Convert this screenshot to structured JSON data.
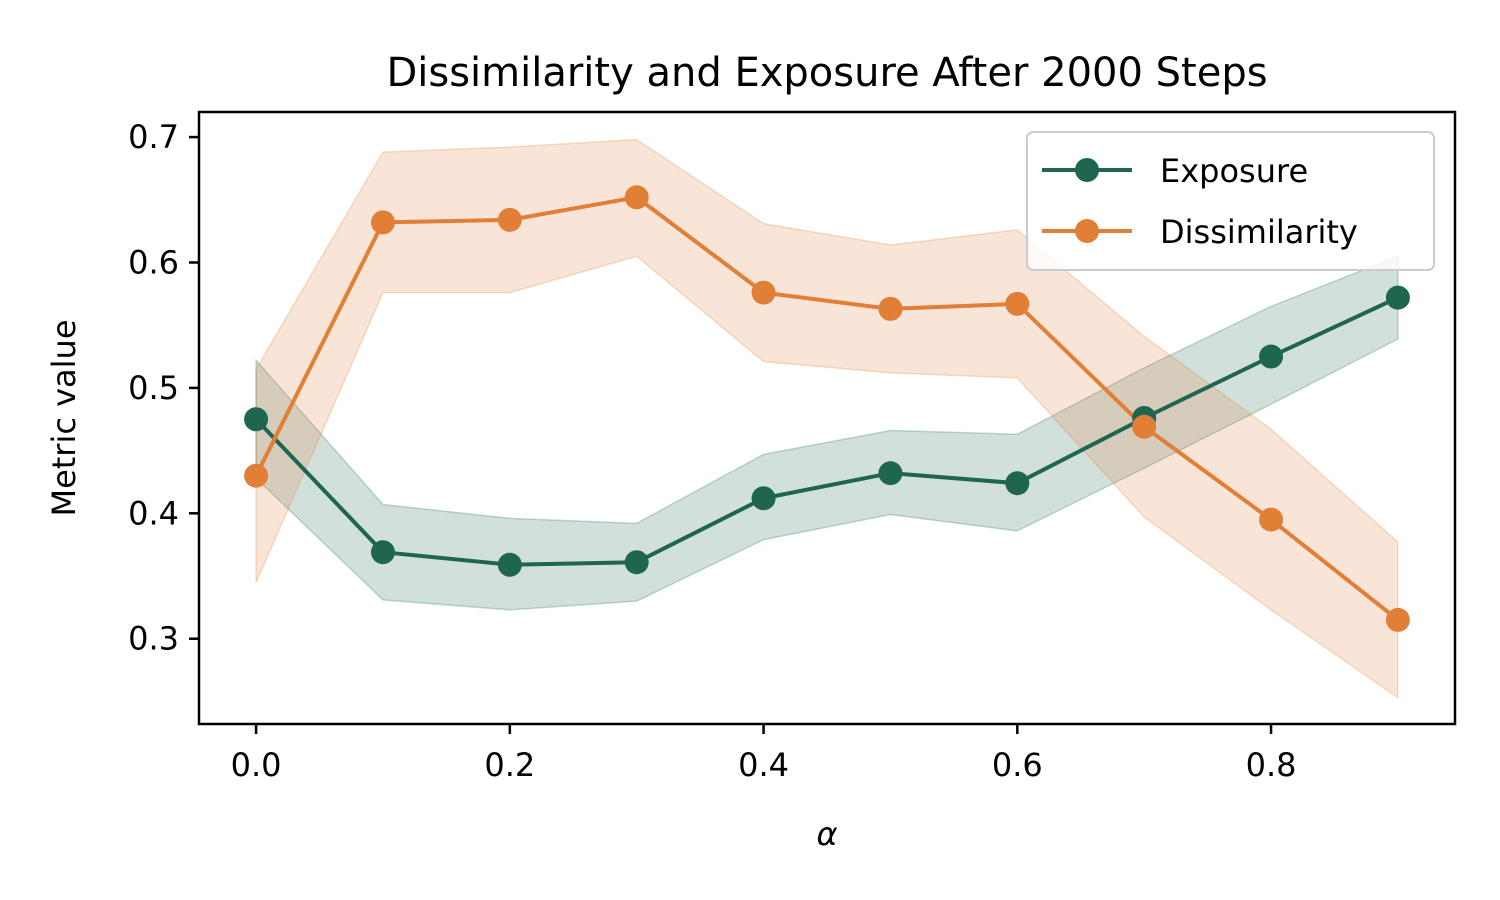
{
  "chart_data": {
    "type": "line",
    "title": "Dissimilarity and Exposure After 2000 Steps",
    "xlabel": "α",
    "ylabel": "Metric value",
    "x": [
      0.0,
      0.1,
      0.2,
      0.3,
      0.4,
      0.5,
      0.6,
      0.7,
      0.8,
      0.9
    ],
    "xlim": [
      -0.045,
      0.945
    ],
    "ylim": [
      0.232,
      0.72
    ],
    "xticks": [
      "0.0",
      "0.2",
      "0.4",
      "0.6",
      "0.8"
    ],
    "yticks": [
      "0.3",
      "0.4",
      "0.5",
      "0.6",
      "0.7"
    ],
    "grid": false,
    "legend_position": "top-right",
    "series": [
      {
        "name": "Exposure",
        "color": "#1f6650",
        "values": [
          0.475,
          0.369,
          0.359,
          0.361,
          0.412,
          0.432,
          0.424,
          0.476,
          0.525,
          0.572
        ],
        "lower": [
          0.428,
          0.331,
          0.323,
          0.33,
          0.379,
          0.399,
          0.386,
          0.436,
          0.487,
          0.539
        ],
        "upper": [
          0.522,
          0.407,
          0.396,
          0.392,
          0.447,
          0.466,
          0.463,
          0.516,
          0.565,
          0.605
        ]
      },
      {
        "name": "Dissimilarity",
        "color": "#e07f35",
        "values": [
          0.43,
          0.632,
          0.634,
          0.652,
          0.576,
          0.563,
          0.567,
          0.469,
          0.395,
          0.315
        ],
        "lower": [
          0.345,
          0.576,
          0.576,
          0.605,
          0.521,
          0.512,
          0.508,
          0.397,
          0.323,
          0.253
        ],
        "upper": [
          0.515,
          0.688,
          0.692,
          0.698,
          0.631,
          0.614,
          0.626,
          0.541,
          0.467,
          0.377
        ]
      }
    ]
  }
}
